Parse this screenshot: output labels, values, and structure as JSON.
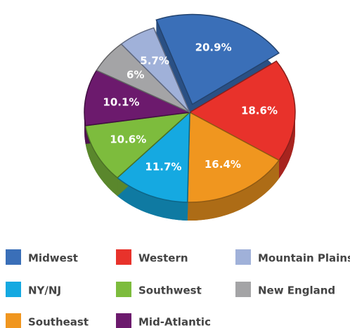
{
  "chart_data": {
    "type": "pie",
    "categories": [
      "Midwest",
      "Western",
      "Southeast",
      "NY/NJ",
      "Southwest",
      "Mid-Atlantic",
      "New England",
      "Mountain Plains"
    ],
    "values": [
      20.9,
      18.6,
      16.4,
      11.7,
      10.6,
      10.1,
      6,
      5.7
    ],
    "value_labels": [
      "20.9%",
      "18.6%",
      "16.4%",
      "11.7%",
      "10.6%",
      "10.1%",
      "6%",
      "5.7%"
    ],
    "colors": [
      "#3a6fb8",
      "#e8322b",
      "#f0961f",
      "#15a9e1",
      "#7dbc3d",
      "#6c1a6d",
      "#a4a4a6",
      "#a0b1d9"
    ],
    "legend": "bottom"
  }
}
